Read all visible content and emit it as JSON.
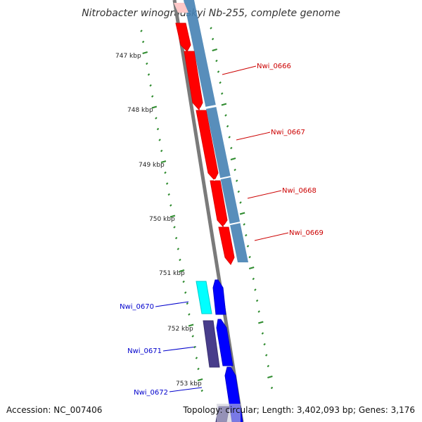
{
  "title": "Nitrobacter winogradskyi Nb-255, complete genome",
  "footer": {
    "accession": "Accession: NC_007406",
    "summary": "Topology: circular; Length: 3,402,093 bp; Genes: 3,176"
  },
  "ticks": [
    "747 kbp",
    "748 kbp",
    "749 kbp",
    "750 kbp",
    "751 kbp",
    "752 kbp",
    "753 kbp"
  ],
  "genes": [
    {
      "name": "Nwi_0666",
      "color": "#cc0000"
    },
    {
      "name": "Nwi_0667",
      "color": "#cc0000"
    },
    {
      "name": "Nwi_0668",
      "color": "#cc0000"
    },
    {
      "name": "Nwi_0669",
      "color": "#cc0000"
    },
    {
      "name": "Nwi_0670",
      "color": "#0000cc"
    },
    {
      "name": "Nwi_0671",
      "color": "#0000cc"
    },
    {
      "name": "Nwi_0672",
      "color": "#0000cc"
    }
  ],
  "colors": {
    "backbone": "#888888",
    "forward_cds": "#ff0000",
    "reverse_cds": "#0000ff",
    "forward_track": "#4682b4",
    "cyan_track": "#00ffff",
    "purple_track": "#483d8b",
    "tick": "#2e8b2e"
  }
}
